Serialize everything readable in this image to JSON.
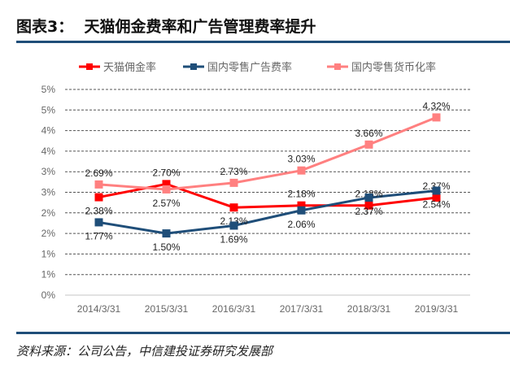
{
  "header": {
    "title": "图表3：  天猫佣金费率和广告管理费率提升"
  },
  "footer": {
    "source": "资料来源：公司公告，中信建投证券研究发展部"
  },
  "chart_data": {
    "type": "line",
    "title": "",
    "xlabel": "",
    "ylabel": "",
    "categories": [
      "2014/3/31",
      "2015/3/31",
      "2016/3/31",
      "2017/3/31",
      "2018/3/31",
      "2019/3/31"
    ],
    "ylim": [
      0,
      5
    ],
    "yticks": [
      0,
      0.5,
      1,
      1.5,
      2,
      2.5,
      3,
      3.5,
      4,
      4.5,
      5
    ],
    "ytick_labels": [
      "0%",
      "1%",
      "1%",
      "2%",
      "2%",
      "3%",
      "3%",
      "4%",
      "4%",
      "5%",
      "5%"
    ],
    "grid": true,
    "legend_position": "top",
    "series": [
      {
        "name": "天猫佣金率",
        "color": "#ff0000",
        "values": [
          2.38,
          2.7,
          2.13,
          2.18,
          2.18,
          2.37
        ],
        "labels": [
          "2.38%",
          "2.70%",
          "2.13%",
          "2.18%",
          "2.18%",
          "2.37%"
        ]
      },
      {
        "name": "国内零售广告费率",
        "color": "#1f4e79",
        "values": [
          1.77,
          1.5,
          1.69,
          2.06,
          2.37,
          2.54
        ],
        "labels": [
          "1.77%",
          "1.50%",
          "1.69%",
          "2.06%",
          "2.37%",
          "2.54%"
        ]
      },
      {
        "name": "国内零售货币化率",
        "color": "#ff8080",
        "values": [
          2.69,
          2.57,
          2.73,
          3.03,
          3.66,
          4.32
        ],
        "labels": [
          "2.69%",
          "2.57%",
          "2.73%",
          "3.03%",
          "3.66%",
          "4.32%"
        ]
      }
    ]
  }
}
